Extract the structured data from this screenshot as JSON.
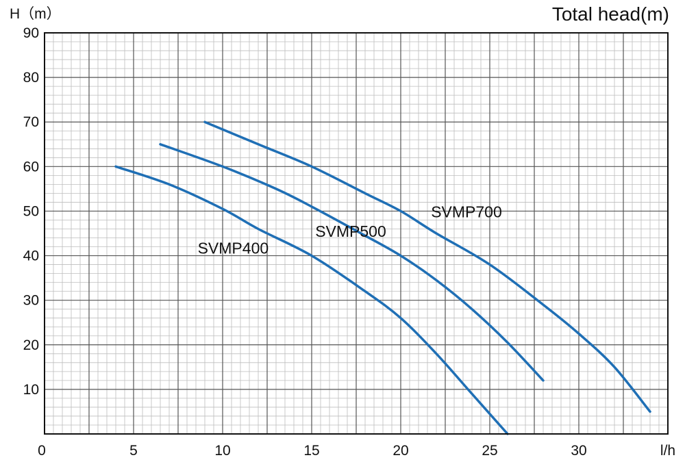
{
  "chart_data": {
    "type": "line",
    "title": "Total head(m)",
    "ylabel": "H（m）",
    "xlabel": "l/h",
    "xlim": [
      0,
      35
    ],
    "ylim": [
      0,
      90
    ],
    "x_ticks": [
      "0",
      "5",
      "10",
      "15",
      "20",
      "25",
      "30"
    ],
    "y_ticks": [
      "10",
      "20",
      "30",
      "40",
      "50",
      "60",
      "70",
      "80",
      "90"
    ],
    "grid": true,
    "line_color": "#1f6fb5",
    "series": [
      {
        "name": "SVMP400",
        "points": [
          [
            4,
            60
          ],
          [
            7,
            56
          ],
          [
            10,
            50.5
          ],
          [
            12,
            46
          ],
          [
            15,
            40
          ],
          [
            18,
            32
          ],
          [
            20,
            26
          ],
          [
            22,
            18
          ],
          [
            24,
            9
          ],
          [
            26,
            0
          ]
        ]
      },
      {
        "name": "SVMP500",
        "points": [
          [
            6.5,
            65
          ],
          [
            10,
            60
          ],
          [
            13,
            55
          ],
          [
            15,
            51
          ],
          [
            18,
            44.5
          ],
          [
            20,
            40
          ],
          [
            22,
            34.5
          ],
          [
            24,
            28
          ],
          [
            26,
            20.5
          ],
          [
            28,
            12
          ]
        ]
      },
      {
        "name": "SVMP700",
        "points": [
          [
            9,
            70
          ],
          [
            12,
            65
          ],
          [
            15,
            60
          ],
          [
            18,
            54
          ],
          [
            20,
            50
          ],
          [
            22,
            45
          ],
          [
            25,
            38
          ],
          [
            28,
            29
          ],
          [
            30,
            22.5
          ],
          [
            32,
            15
          ],
          [
            34,
            5
          ]
        ]
      }
    ]
  }
}
